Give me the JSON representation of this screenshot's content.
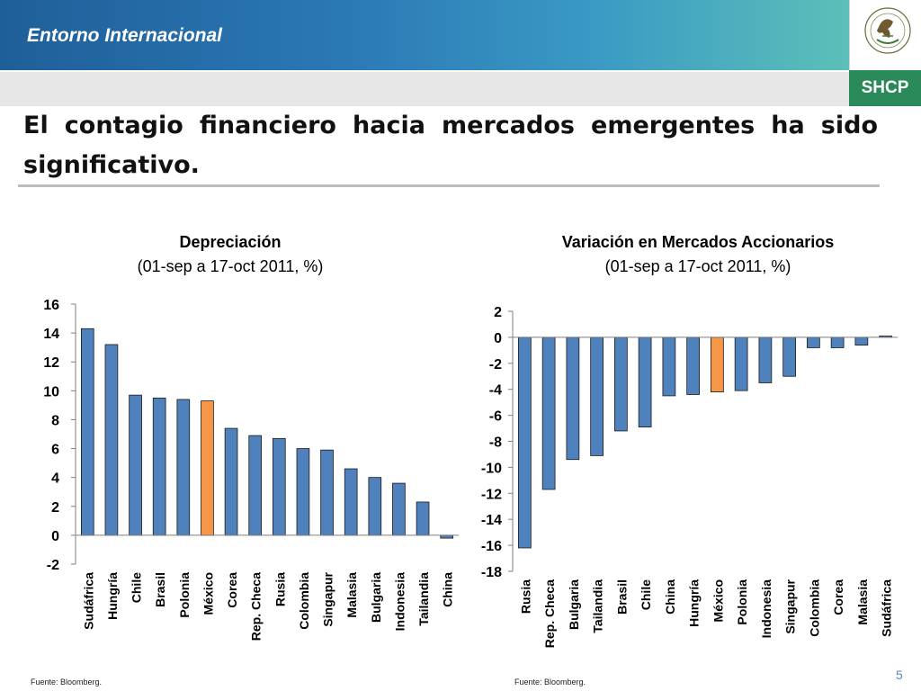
{
  "header": {
    "section_title": "Entorno Internacional",
    "logo_text": "SHCP",
    "seal_icon": "mexican-coat-of-arms",
    "seal_lettering": "ESTADOS UNIDOS MEXICANOS"
  },
  "slide": {
    "title": "El contagio financiero hacia mercados emergentes ha sido significativo.",
    "page_number": "5"
  },
  "colors": {
    "bar_default": "#4f81bd",
    "bar_highlight": "#f79646",
    "bar_edge": "#1a1a1a"
  },
  "chart_data": [
    {
      "type": "bar",
      "title": "Depreciación",
      "subtitle": "(01-sep a 17-oct 2011, %)",
      "categories": [
        "Sudáfrica",
        "Hungría",
        "Chile",
        "Brasil",
        "Polonia",
        "México",
        "Corea",
        "Rep. Checa",
        "Rusia",
        "Colombia",
        "Singapur",
        "Malasia",
        "Bulgaria",
        "Indonesia",
        "Tailandia",
        "China"
      ],
      "values": [
        14.3,
        13.2,
        9.7,
        9.5,
        9.4,
        9.3,
        7.4,
        6.9,
        6.7,
        6.0,
        5.9,
        4.6,
        4.0,
        3.6,
        2.3,
        -0.2
      ],
      "highlight": "México",
      "ylim": [
        -2,
        16
      ],
      "yticks": [
        -2,
        0,
        2,
        4,
        6,
        8,
        10,
        12,
        14,
        16
      ],
      "source": "Fuente: Bloomberg."
    },
    {
      "type": "bar",
      "title": "Variación en Mercados Accionarios",
      "subtitle": "(01-sep a 17-oct 2011, %)",
      "categories": [
        "Rusia",
        "Rep. Checa",
        "Bulgaria",
        "Tailandia",
        "Brasil",
        "Chile",
        "China",
        "Hungría",
        "México",
        "Polonia",
        "Indonesia",
        "Singapur",
        "Colombia",
        "Corea",
        "Malasia",
        "Sudáfrica"
      ],
      "values": [
        -16.2,
        -11.7,
        -9.4,
        -9.1,
        -7.2,
        -6.9,
        -4.5,
        -4.4,
        -4.2,
        -4.1,
        -3.5,
        -3.0,
        -0.8,
        -0.8,
        -0.6,
        0.1
      ],
      "highlight": "México",
      "ylim": [
        -18,
        2
      ],
      "yticks": [
        -18,
        -16,
        -14,
        -12,
        -10,
        -8,
        -6,
        -4,
        -2,
        0,
        2
      ],
      "source": "Fuente: Bloomberg."
    }
  ]
}
